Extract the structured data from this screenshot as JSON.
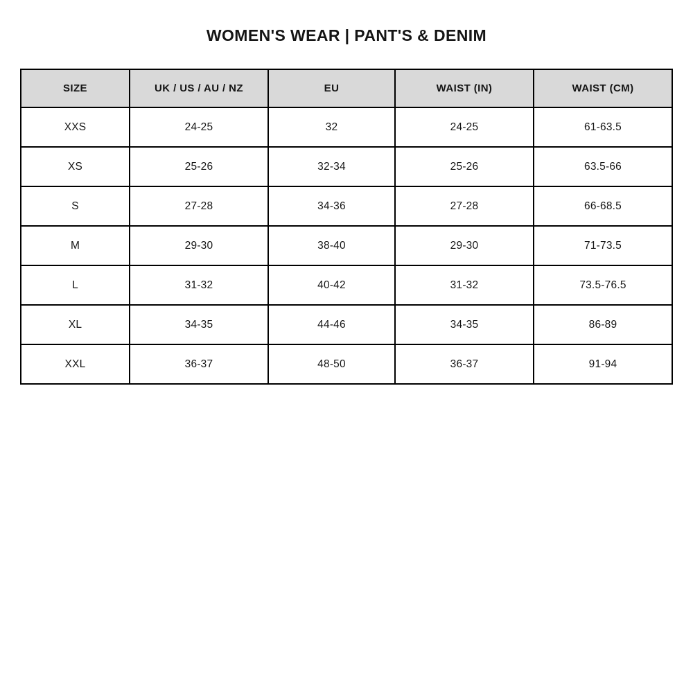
{
  "colors": {
    "page_bg": "#ffffff",
    "header_bg": "#d9d9d9",
    "border": "#000000",
    "text": "#151515"
  },
  "chart_data": {
    "type": "table",
    "title": "WOMEN'S WEAR | PANT'S & DENIM",
    "columns": [
      "SIZE",
      "UK / US / AU / NZ",
      "EU",
      "WAIST (IN)",
      "WAIST (CM)"
    ],
    "rows": [
      [
        "XXS",
        "24-25",
        "32",
        "24-25",
        "61-63.5"
      ],
      [
        "XS",
        "25-26",
        "32-34",
        "25-26",
        "63.5-66"
      ],
      [
        "S",
        "27-28",
        "34-36",
        "27-28",
        "66-68.5"
      ],
      [
        "M",
        "29-30",
        "38-40",
        "29-30",
        "71-73.5"
      ],
      [
        "L",
        "31-32",
        "40-42",
        "31-32",
        "73.5-76.5"
      ],
      [
        "XL",
        "34-35",
        "44-46",
        "34-35",
        "86-89"
      ],
      [
        "XXL",
        "36-37",
        "48-50",
        "36-37",
        "91-94"
      ]
    ]
  }
}
